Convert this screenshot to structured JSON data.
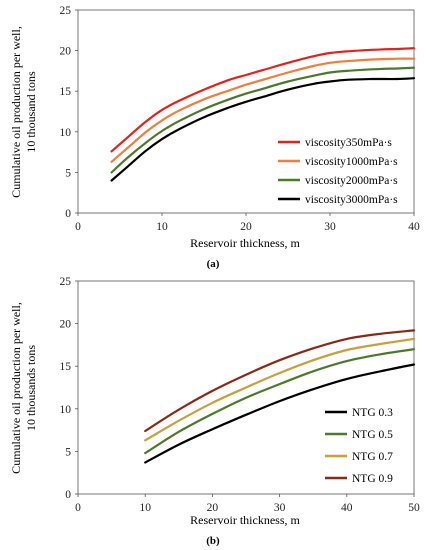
{
  "chart_data": [
    {
      "type": "line",
      "caption": "(a)",
      "xlabel": "Reservoir thickness, m",
      "ylabel": "Cumulative oil production per well, 10 thousand tons",
      "ylabel_lines": [
        "Cumulative oil production per well,",
        "10 thousand tons"
      ],
      "xlim": [
        0,
        40
      ],
      "ylim": [
        0,
        25
      ],
      "xticks": [
        0,
        10,
        20,
        30,
        40
      ],
      "yticks": [
        0,
        5,
        10,
        15,
        20,
        25
      ],
      "grid": false,
      "legend_position": "bottom-right",
      "x": [
        4,
        6,
        8,
        10,
        12,
        15,
        18,
        20,
        22,
        25,
        28,
        30,
        32,
        35,
        38,
        40
      ],
      "series": [
        {
          "name": "viscosity350mPa·s",
          "color": "#e8201a",
          "values": [
            7.6,
            9.4,
            11.2,
            12.7,
            13.8,
            15.2,
            16.4,
            17.0,
            17.6,
            18.5,
            19.3,
            19.7,
            19.9,
            20.1,
            20.2,
            20.3
          ]
        },
        {
          "name": "viscosity1000mPa·s",
          "color": "#f07e3c",
          "values": [
            6.3,
            8.1,
            9.9,
            11.4,
            12.6,
            14.0,
            15.1,
            15.8,
            16.4,
            17.3,
            18.1,
            18.5,
            18.7,
            18.9,
            19.0,
            19.0
          ]
        },
        {
          "name": "viscosity2000mPa·s",
          "color": "#4a7a2a",
          "values": [
            5.0,
            6.9,
            8.6,
            10.1,
            11.3,
            12.8,
            14.0,
            14.7,
            15.3,
            16.2,
            16.9,
            17.3,
            17.5,
            17.7,
            17.8,
            17.9
          ]
        },
        {
          "name": "viscosity3000mPa·s",
          "color": "#000000",
          "values": [
            4.0,
            5.8,
            7.6,
            9.1,
            10.3,
            11.8,
            13.0,
            13.7,
            14.3,
            15.2,
            15.9,
            16.2,
            16.4,
            16.5,
            16.5,
            16.6
          ]
        }
      ]
    },
    {
      "type": "line",
      "caption": "(b)",
      "xlabel": "Reservoir thickness, m",
      "ylabel": "Cumulative oil production per well, 10 thousands tons",
      "ylabel_lines": [
        "Cumulative oil production per well,",
        "10 thousands  tons"
      ],
      "xlim": [
        0,
        50
      ],
      "ylim": [
        0,
        25
      ],
      "xticks": [
        0,
        10,
        20,
        30,
        40,
        50
      ],
      "yticks": [
        0,
        5,
        10,
        15,
        20,
        25
      ],
      "grid": false,
      "legend_position": "bottom-right",
      "x": [
        10,
        15,
        20,
        25,
        30,
        35,
        40,
        45,
        50
      ],
      "series": [
        {
          "name": "NTG 0.3",
          "color": "#000000",
          "values": [
            3.7,
            5.8,
            7.6,
            9.3,
            10.9,
            12.3,
            13.5,
            14.4,
            15.2
          ]
        },
        {
          "name": "NTG 0.5",
          "color": "#4a7a2a",
          "values": [
            4.8,
            7.3,
            9.4,
            11.3,
            12.9,
            14.4,
            15.6,
            16.4,
            17.0
          ]
        },
        {
          "name": "NTG 0.7",
          "color": "#c9a03a",
          "values": [
            6.3,
            8.6,
            10.7,
            12.5,
            14.2,
            15.7,
            16.9,
            17.6,
            18.2
          ]
        },
        {
          "name": "NTG 0.9",
          "color": "#8b2a14",
          "values": [
            7.4,
            9.9,
            12.1,
            14.0,
            15.7,
            17.1,
            18.2,
            18.8,
            19.2
          ]
        }
      ]
    }
  ]
}
